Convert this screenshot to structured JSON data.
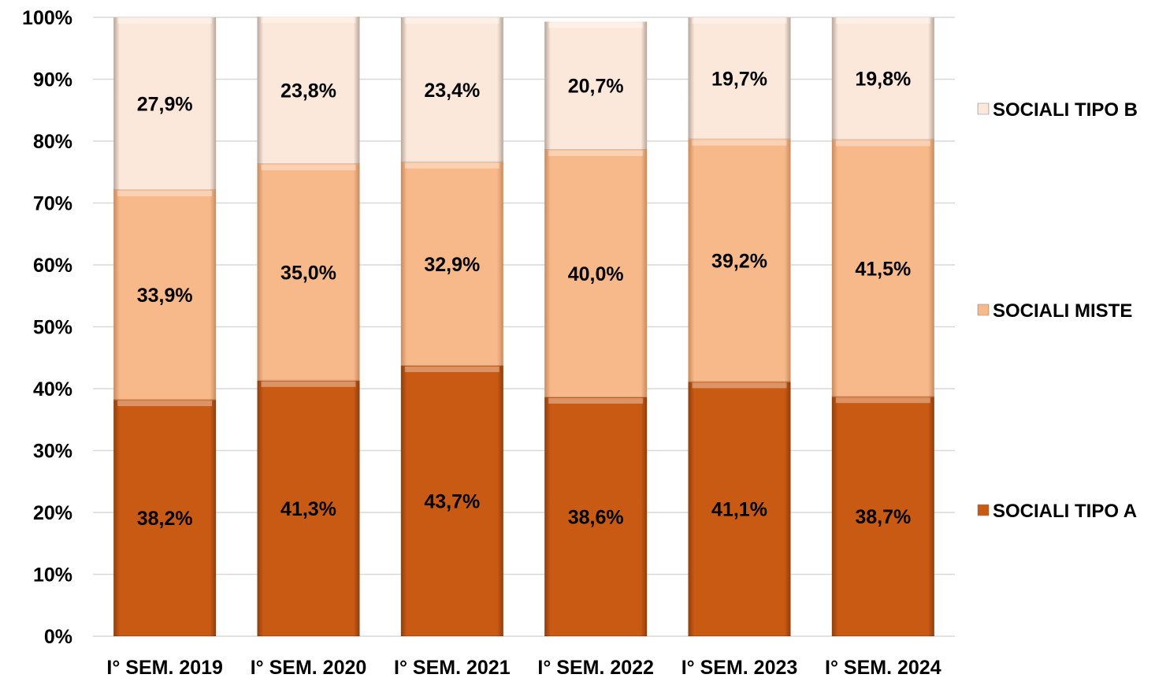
{
  "chart_data": {
    "type": "bar",
    "stacked": true,
    "percent_axis": true,
    "categories": [
      "I° SEM. 2019",
      "I° SEM. 2020",
      "I° SEM. 2021",
      "I° SEM. 2022",
      "I° SEM. 2023",
      "I° SEM. 2024"
    ],
    "series": [
      {
        "name": "SOCIALI TIPO A",
        "values": [
          38.2,
          41.3,
          43.7,
          38.6,
          41.1,
          38.7
        ],
        "labels": [
          "38,2%",
          "41,3%",
          "43,7%",
          "38,6%",
          "41,1%",
          "38,7%"
        ],
        "color": "#C95A14"
      },
      {
        "name": "SOCIALI MISTE",
        "values": [
          33.9,
          35.0,
          32.9,
          40.0,
          39.2,
          41.5
        ],
        "labels": [
          "33,9%",
          "35,0%",
          "32,9%",
          "40,0%",
          "39,2%",
          "41,5%"
        ],
        "color": "#F8B98A"
      },
      {
        "name": "SOCIALI TIPO B",
        "values": [
          27.9,
          23.8,
          23.4,
          20.7,
          19.7,
          19.8
        ],
        "labels": [
          "27,9%",
          "23,8%",
          "23,4%",
          "20,7%",
          "19,7%",
          "19,8%"
        ],
        "color": "#FCE8DA"
      }
    ],
    "yticks": [
      "0%",
      "10%",
      "20%",
      "30%",
      "40%",
      "50%",
      "60%",
      "70%",
      "80%",
      "90%",
      "100%"
    ],
    "ylim": [
      0,
      100
    ],
    "grid": true,
    "legend_position": "right",
    "title": "",
    "xlabel": "",
    "ylabel": ""
  }
}
